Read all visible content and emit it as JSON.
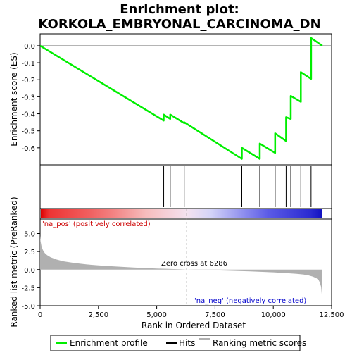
{
  "chart_data": {
    "type": "line",
    "title_line1": "Enrichment plot:",
    "title_line2": "KORKOLA_EMBRYONAL_CARCINOMA_DN",
    "top_ylabel": "Enrichment score (ES)",
    "bottom_ylabel": "Ranked list metric (PreRanked)",
    "xlabel": "Rank in Ordered Dataset",
    "x_ticks": [
      0,
      2500,
      5000,
      7500,
      10000,
      12500
    ],
    "x_tick_labels": [
      "0",
      "2,500",
      "5,000",
      "7,500",
      "10,000",
      "12,500"
    ],
    "es_yticks": [
      0.0,
      -0.1,
      -0.2,
      -0.3,
      -0.4,
      -0.5,
      -0.6
    ],
    "es_ytick_labels": [
      "0.0",
      "-0.1",
      "-0.2",
      "-0.3",
      "-0.4",
      "-0.5",
      "-0.6"
    ],
    "es_ylim": [
      -0.7,
      0.07
    ],
    "metric_yticks": [
      5.0,
      2.5,
      0.0,
      -2.5,
      -5.0
    ],
    "metric_ytick_labels": [
      "5.0",
      "2.5",
      "0.0",
      "-2.5",
      "-5.0"
    ],
    "metric_ylim": [
      -5.0,
      7.0
    ],
    "xlim": [
      0,
      12500
    ],
    "n_genes": 12100,
    "zero_cross": 6286,
    "zero_cross_label": "Zero cross at 6286",
    "pos_label": "'na_pos' (positively correlated)",
    "neg_label": "'na_neg' (negatively correlated)",
    "hits": [
      5300,
      5580,
      6180,
      8650,
      9420,
      10080,
      10550,
      10750,
      11180,
      11620
    ],
    "enrichment_profile": {
      "x": [
        0,
        5300,
        5300,
        5580,
        5580,
        6180,
        6180,
        8650,
        8650,
        9420,
        9420,
        10080,
        10080,
        10550,
        10550,
        10750,
        10750,
        11180,
        11180,
        11620,
        11620,
        12100
      ],
      "y": [
        0.0,
        -0.44,
        -0.405,
        -0.43,
        -0.405,
        -0.455,
        -0.45,
        -0.665,
        -0.6,
        -0.665,
        -0.575,
        -0.63,
        -0.515,
        -0.56,
        -0.42,
        -0.43,
        -0.295,
        -0.33,
        -0.155,
        -0.195,
        0.045,
        0.0
      ]
    },
    "metric_profile": {
      "x": [
        0,
        20,
        60,
        120,
        200,
        300,
        450,
        700,
        1000,
        1500,
        2000,
        2500,
        3000,
        4000,
        5000,
        6000,
        6286,
        7000,
        8000,
        9000,
        10000,
        10500,
        11000,
        11300,
        11500,
        11700,
        11850,
        11950,
        12000,
        12050,
        12080,
        12100
      ],
      "y": [
        4.7,
        3.9,
        3.2,
        2.7,
        2.3,
        2.0,
        1.7,
        1.4,
        1.15,
        0.9,
        0.72,
        0.58,
        0.47,
        0.3,
        0.15,
        0.04,
        0.0,
        -0.06,
        -0.15,
        -0.25,
        -0.38,
        -0.47,
        -0.58,
        -0.68,
        -0.8,
        -0.98,
        -1.2,
        -1.5,
        -1.8,
        -2.4,
        -3.5,
        -4.6
      ]
    },
    "legend": [
      "Enrichment profile",
      "Hits",
      "Ranking metric scores"
    ],
    "colors": {
      "profile": "#00ee00",
      "hits": "#000000",
      "metric": "#b0b0b0",
      "zero_line": "#999999",
      "pos_text": "#cc0000",
      "neg_text": "#0000cc"
    },
    "gradient_stops": [
      {
        "x": 0,
        "color": "#dd0000"
      },
      {
        "x": 350,
        "color": "#ee3333"
      },
      {
        "x": 2100,
        "color": "#f06060"
      },
      {
        "x": 3100,
        "color": "#f38282"
      },
      {
        "x": 4500,
        "color": "#f7bcbc"
      },
      {
        "x": 6286,
        "color": "#f4e2f0"
      },
      {
        "x": 7300,
        "color": "#d4d4f8"
      },
      {
        "x": 8800,
        "color": "#8a8aee"
      },
      {
        "x": 9800,
        "color": "#5a5ae6"
      },
      {
        "x": 11600,
        "color": "#2a2ad0"
      },
      {
        "x": 12100,
        "color": "#1010c0"
      }
    ]
  }
}
